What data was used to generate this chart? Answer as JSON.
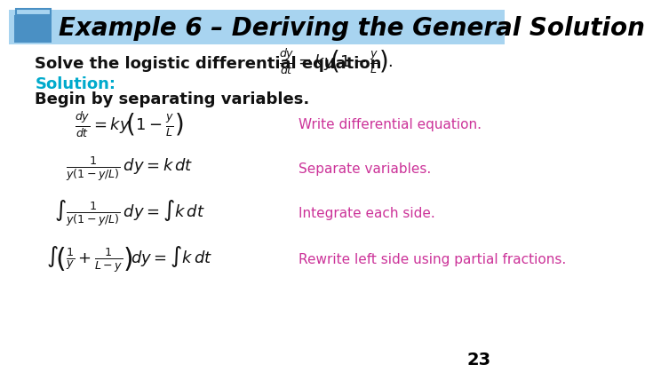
{
  "title": "Example 6 – Deriving the General Solution",
  "title_bg_color": "#a8d4f0",
  "title_text_color": "#000000",
  "title_accent_color": "#4a90c4",
  "body_bg_color": "#ffffff",
  "intro_text": "Solve the logistic differential equation",
  "solution_label": "Solution:",
  "solution_color": "#00aacc",
  "begin_text": "Begin by separating variables.",
  "eq1_right": "Write differential equation.",
  "eq2_right": "Separate variables.",
  "eq3_right": "Integrate each side.",
  "eq4_right": "Rewrite left side using partial fractions.",
  "annotation_color": "#cc3399",
  "page_number": "23",
  "page_number_color": "#000000"
}
